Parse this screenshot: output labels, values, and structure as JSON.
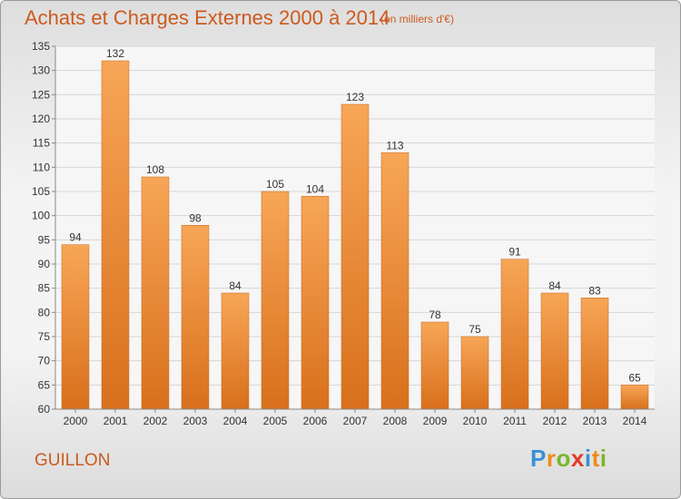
{
  "header": {
    "title": "Achats et Charges Externes 2000 à 2014",
    "subtitle": "(en milliers d'€)"
  },
  "footer": {
    "commune": "GUILLON",
    "logo_letters": [
      "P",
      "r",
      "o",
      "x",
      "i",
      "t",
      "i"
    ],
    "logo_colors": [
      "#3a8fd8",
      "#f08a1c",
      "#7ab52a",
      "#e23a2a",
      "#3a8fd8",
      "#f08a1c",
      "#7ab52a"
    ]
  },
  "chart_data": {
    "type": "bar",
    "categories": [
      "2000",
      "2001",
      "2002",
      "2003",
      "2004",
      "2005",
      "2006",
      "2007",
      "2008",
      "2009",
      "2010",
      "2011",
      "2012",
      "2013",
      "2014"
    ],
    "values": [
      94,
      132,
      108,
      98,
      84,
      105,
      104,
      123,
      113,
      78,
      75,
      91,
      84,
      83,
      65
    ],
    "ylim": [
      60,
      135
    ],
    "yticks": [
      60,
      65,
      70,
      75,
      80,
      85,
      90,
      95,
      100,
      105,
      110,
      115,
      120,
      125,
      130,
      135
    ],
    "grid": true,
    "bar_color": "#f0903a"
  }
}
